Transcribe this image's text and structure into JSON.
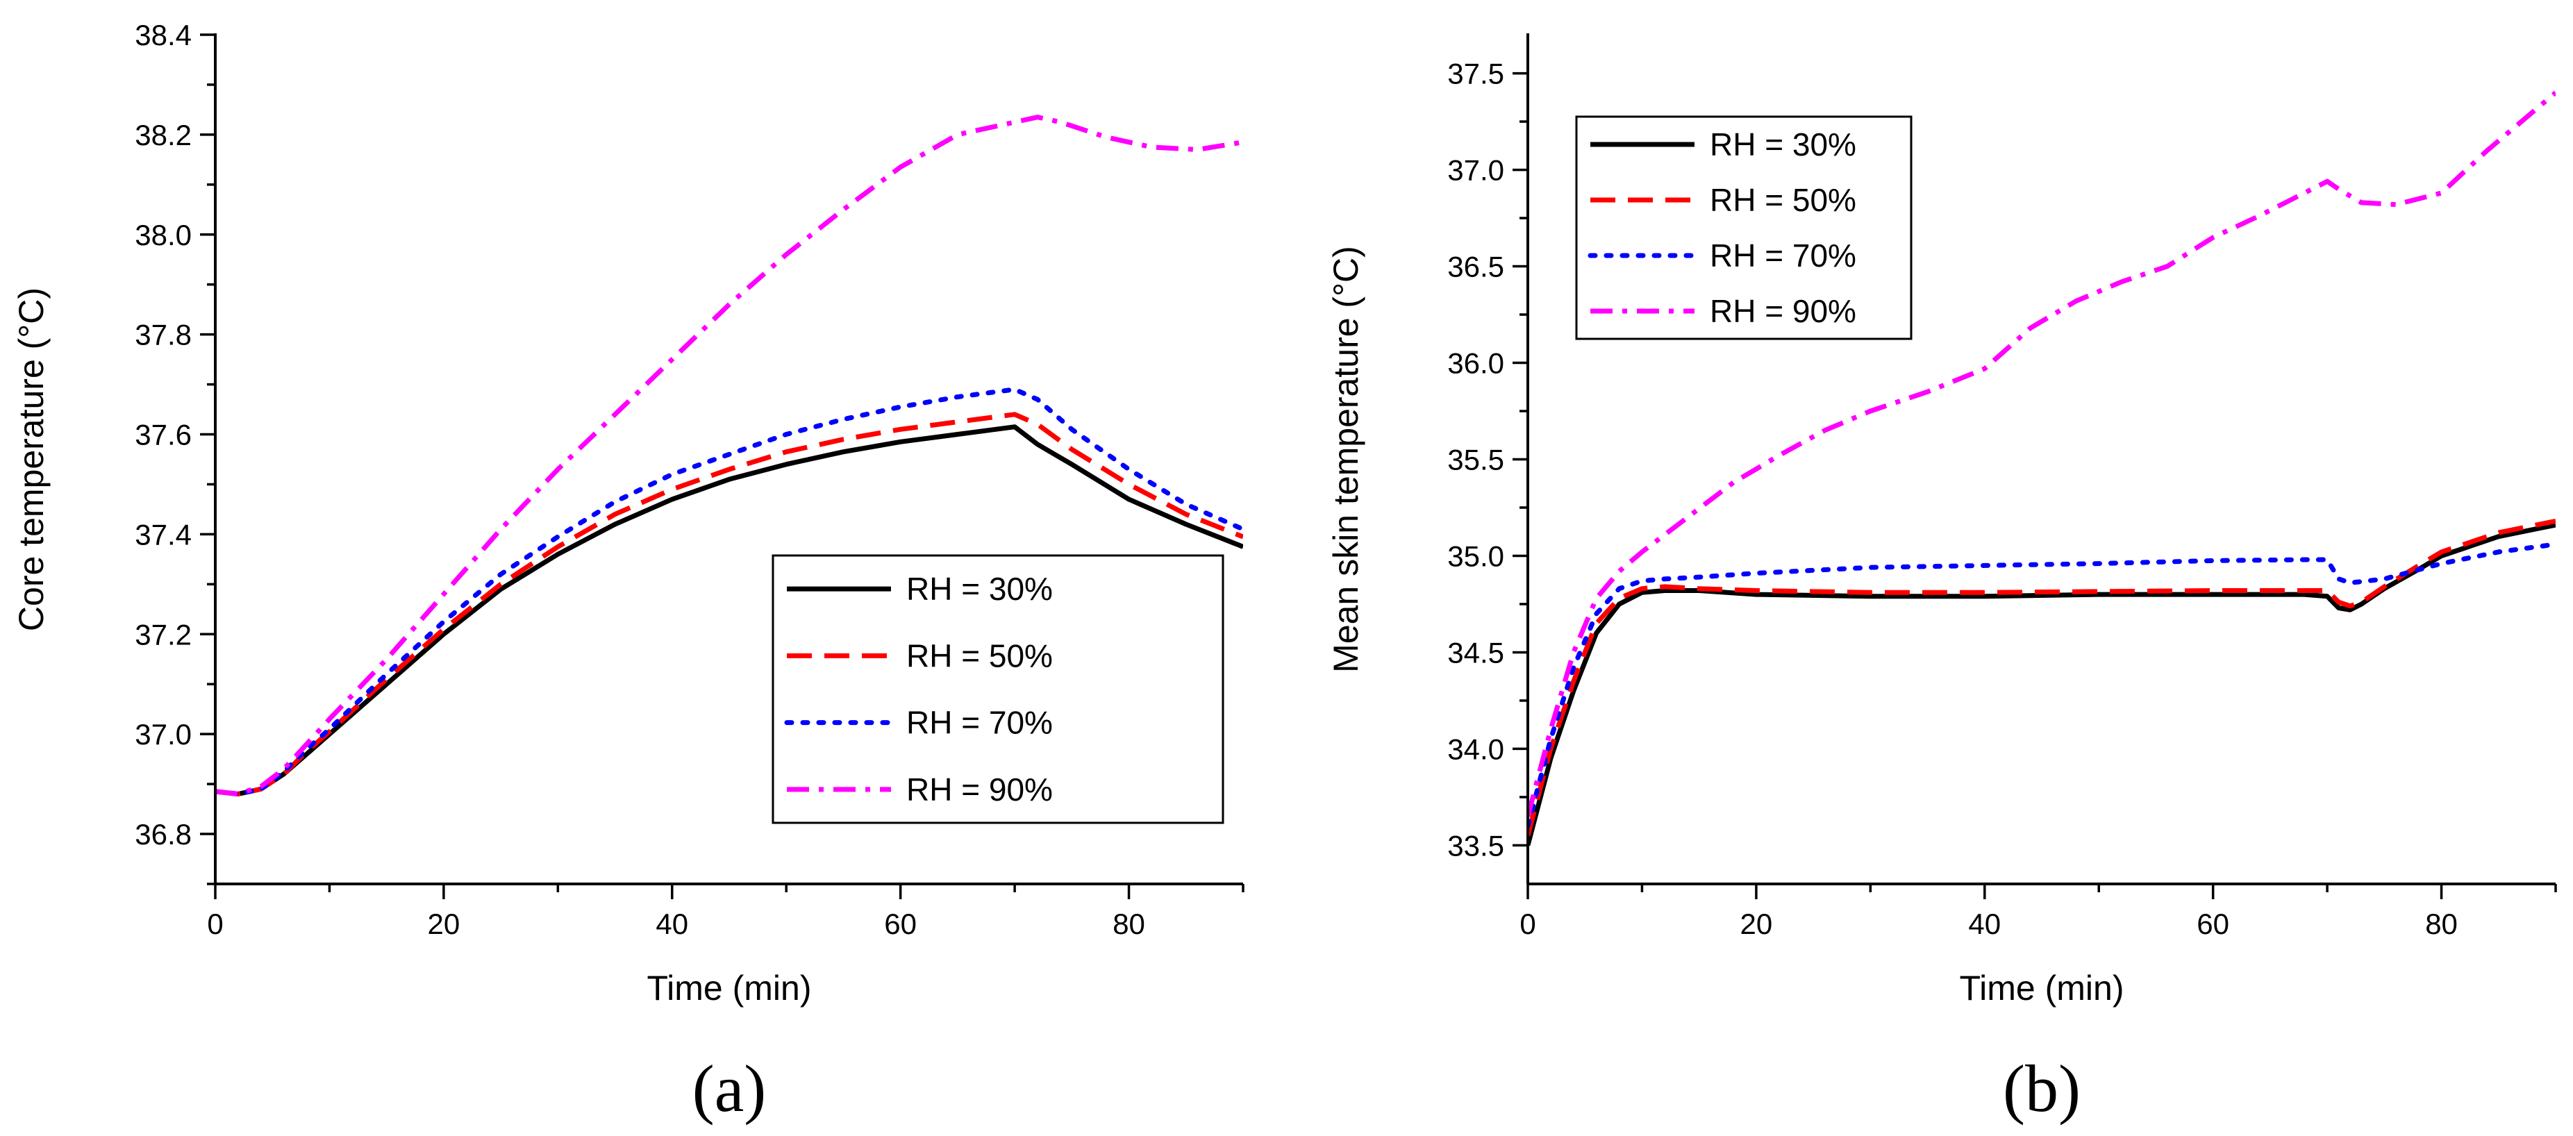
{
  "chart_data": [
    {
      "type": "line",
      "caption": "(a)",
      "xlabel": "Time (min)",
      "ylabel": "Core temperature (°C)",
      "xlim": [
        0,
        90
      ],
      "ylim": [
        36.7,
        38.4
      ],
      "xticks": [
        0,
        20,
        40,
        60,
        80
      ],
      "yticks": [
        36.8,
        37.0,
        37.2,
        37.4,
        37.6,
        37.8,
        38.0,
        38.2,
        38.4
      ],
      "ytick_labels": [
        "36.8",
        "37.0",
        "37.2",
        "37.4",
        "37.6",
        "37.8",
        "38.0",
        "38.2",
        "38.4"
      ],
      "legend": "lower-right",
      "series": [
        {
          "name": "RH = 30%",
          "color": "#000000",
          "dash": "solid",
          "x": [
            0,
            2,
            4,
            6,
            8,
            10,
            15,
            20,
            25,
            30,
            35,
            40,
            45,
            50,
            55,
            60,
            65,
            70,
            72,
            75,
            80,
            85,
            90
          ],
          "y": [
            36.885,
            36.88,
            36.89,
            36.92,
            36.96,
            37.0,
            37.1,
            37.2,
            37.29,
            37.36,
            37.42,
            37.47,
            37.51,
            37.54,
            37.565,
            37.585,
            37.6,
            37.615,
            37.58,
            37.54,
            37.47,
            37.42,
            37.375
          ]
        },
        {
          "name": "RH = 50%",
          "color": "#ff0000",
          "dash": "dashed",
          "x": [
            0,
            2,
            4,
            6,
            8,
            10,
            15,
            20,
            25,
            30,
            35,
            40,
            45,
            50,
            55,
            60,
            65,
            70,
            72,
            75,
            80,
            85,
            90
          ],
          "y": [
            36.885,
            36.88,
            36.89,
            36.92,
            36.965,
            37.005,
            37.11,
            37.21,
            37.3,
            37.375,
            37.44,
            37.49,
            37.53,
            37.565,
            37.59,
            37.61,
            37.625,
            37.64,
            37.62,
            37.57,
            37.5,
            37.44,
            37.395
          ]
        },
        {
          "name": "RH = 70%",
          "color": "#0000ff",
          "dash": "dotted",
          "x": [
            0,
            2,
            4,
            6,
            8,
            10,
            15,
            20,
            25,
            30,
            35,
            40,
            45,
            50,
            55,
            60,
            65,
            70,
            72,
            75,
            80,
            85,
            90
          ],
          "y": [
            36.885,
            36.88,
            36.89,
            36.925,
            36.97,
            37.01,
            37.12,
            37.225,
            37.32,
            37.395,
            37.465,
            37.52,
            37.56,
            37.6,
            37.63,
            37.655,
            37.675,
            37.69,
            37.67,
            37.61,
            37.53,
            37.46,
            37.41
          ]
        },
        {
          "name": "RH = 90%",
          "color": "#ff00ff",
          "dash": "dashdot",
          "x": [
            0,
            2,
            4,
            6,
            8,
            10,
            15,
            20,
            25,
            30,
            35,
            40,
            45,
            50,
            55,
            60,
            65,
            70,
            72,
            74,
            78,
            82,
            86,
            90
          ],
          "y": [
            36.885,
            36.88,
            36.895,
            36.93,
            36.98,
            37.03,
            37.15,
            37.28,
            37.41,
            37.53,
            37.64,
            37.75,
            37.86,
            37.96,
            38.05,
            38.135,
            38.2,
            38.225,
            38.235,
            38.225,
            38.195,
            38.175,
            38.17,
            38.185
          ]
        }
      ]
    },
    {
      "type": "line",
      "caption": "(b)",
      "xlabel": "Time (min)",
      "ylabel": "Mean skin temperature (°C)",
      "xlim": [
        0,
        90
      ],
      "ylim": [
        33.3,
        37.7
      ],
      "xticks": [
        0,
        20,
        40,
        60,
        80
      ],
      "yticks": [
        33.5,
        34.0,
        34.5,
        35.0,
        35.5,
        36.0,
        36.5,
        37.0,
        37.5
      ],
      "ytick_labels": [
        "33.5",
        "34.0",
        "34.5",
        "35.0",
        "35.5",
        "36.0",
        "36.5",
        "37.0",
        "37.5"
      ],
      "legend": "top-left",
      "series": [
        {
          "name": "RH = 30%",
          "color": "#000000",
          "dash": "solid",
          "x": [
            0,
            2,
            4,
            6,
            8,
            10,
            12,
            15,
            20,
            30,
            40,
            50,
            60,
            68,
            70,
            71,
            72,
            73,
            75,
            78,
            80,
            85,
            90
          ],
          "y": [
            33.5,
            33.95,
            34.3,
            34.6,
            34.75,
            34.81,
            34.82,
            34.82,
            34.8,
            34.79,
            34.79,
            34.8,
            34.8,
            34.8,
            34.79,
            34.73,
            34.72,
            34.75,
            34.83,
            34.93,
            35.0,
            35.1,
            35.16
          ]
        },
        {
          "name": "RH = 50%",
          "color": "#ff0000",
          "dash": "dashed",
          "x": [
            0,
            2,
            4,
            6,
            8,
            10,
            12,
            15,
            20,
            30,
            40,
            50,
            60,
            68,
            70,
            71,
            72,
            73,
            75,
            78,
            80,
            85,
            90
          ],
          "y": [
            33.55,
            34.0,
            34.35,
            34.65,
            34.78,
            34.83,
            34.84,
            34.83,
            34.82,
            34.81,
            34.81,
            34.815,
            34.82,
            34.82,
            34.82,
            34.76,
            34.74,
            34.76,
            34.84,
            34.95,
            35.02,
            35.12,
            35.18
          ]
        },
        {
          "name": "RH = 70%",
          "color": "#0000ff",
          "dash": "dotted",
          "x": [
            0,
            2,
            4,
            6,
            8,
            10,
            12,
            15,
            20,
            30,
            40,
            50,
            60,
            68,
            70,
            71,
            72,
            75,
            80,
            85,
            90
          ],
          "y": [
            33.6,
            34.05,
            34.42,
            34.7,
            34.83,
            34.87,
            34.88,
            34.89,
            34.91,
            34.94,
            34.95,
            34.96,
            34.975,
            34.98,
            34.98,
            34.88,
            34.86,
            34.88,
            34.96,
            35.02,
            35.06
          ]
        },
        {
          "name": "RH = 90%",
          "color": "#ff00ff",
          "dash": "dashdot",
          "x": [
            0,
            2,
            4,
            6,
            8,
            10,
            14,
            18,
            22,
            26,
            30,
            35,
            40,
            44,
            48,
            52,
            56,
            60,
            64,
            68,
            70,
            71,
            73,
            76,
            80,
            84,
            88,
            90
          ],
          "y": [
            33.65,
            34.1,
            34.5,
            34.78,
            34.92,
            35.02,
            35.2,
            35.38,
            35.52,
            35.65,
            35.75,
            35.85,
            35.97,
            36.18,
            36.32,
            36.42,
            36.5,
            36.65,
            36.76,
            36.88,
            36.94,
            36.9,
            36.83,
            36.82,
            36.88,
            37.1,
            37.3,
            37.4
          ]
        }
      ]
    }
  ]
}
